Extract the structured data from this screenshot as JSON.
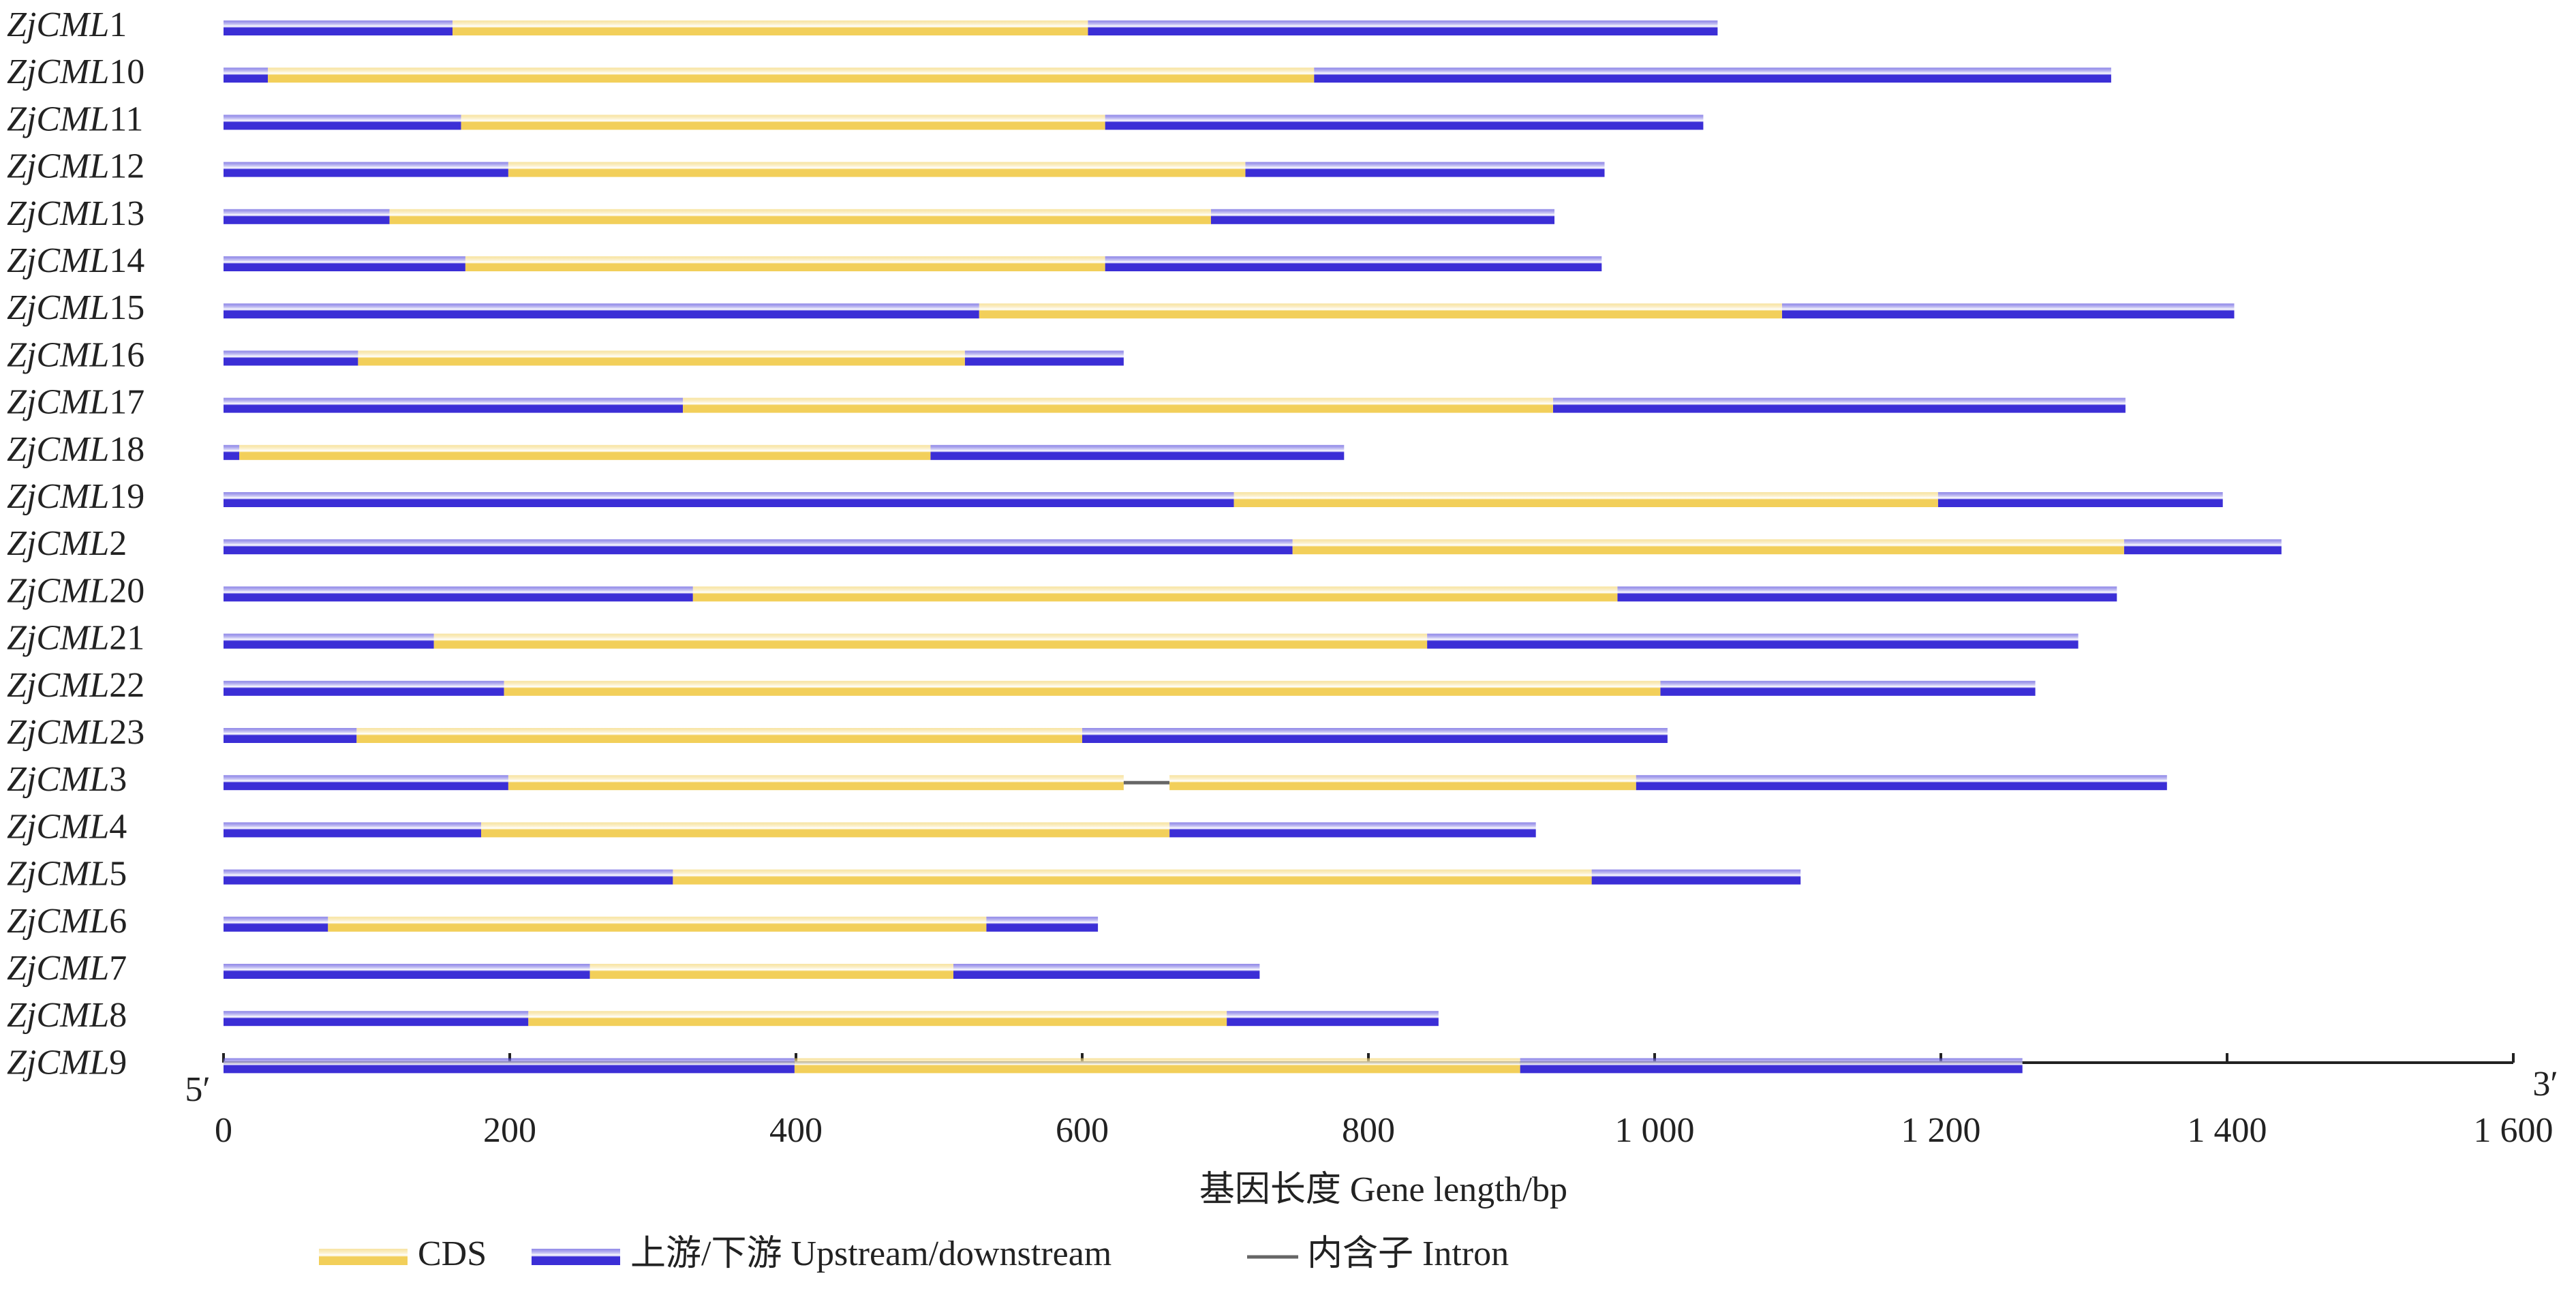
{
  "chart_data": {
    "type": "gene_structure",
    "xlabel": "基因长度 Gene length/bp",
    "start_label": "5′",
    "end_label": "3′",
    "xlim": [
      0,
      1600
    ],
    "xticks": [
      0,
      200,
      400,
      600,
      800,
      {
        "value": 1000,
        "label": "1 000"
      },
      {
        "value": 1200,
        "label": "1 200"
      },
      {
        "value": 1400,
        "label": "1 400"
      },
      {
        "value": 1600,
        "label": "1 600"
      }
    ],
    "series": [
      {
        "name": "CDS",
        "color": "#f2cf5a"
      },
      {
        "name": "上游/下游 Upstream/downstream",
        "color": "#3b2ed6"
      },
      {
        "name": "内含子 Intron",
        "color": "#666666"
      }
    ],
    "genes": [
      {
        "name": "ZjCML1",
        "cds": [
          [
            160,
            604
          ]
        ],
        "length": 1044
      },
      {
        "name": "ZjCML10",
        "cds": [
          [
            31,
            762
          ]
        ],
        "length": 1319
      },
      {
        "name": "ZjCML11",
        "cds": [
          [
            166,
            616
          ]
        ],
        "length": 1034
      },
      {
        "name": "ZjCML12",
        "cds": [
          [
            199,
            714
          ]
        ],
        "length": 965
      },
      {
        "name": "ZjCML13",
        "cds": [
          [
            116,
            690
          ]
        ],
        "length": 930
      },
      {
        "name": "ZjCML14",
        "cds": [
          [
            169,
            616
          ]
        ],
        "length": 963
      },
      {
        "name": "ZjCML15",
        "cds": [
          [
            528,
            1089
          ]
        ],
        "length": 1405
      },
      {
        "name": "ZjCML16",
        "cds": [
          [
            94,
            518
          ]
        ],
        "length": 629
      },
      {
        "name": "ZjCML17",
        "cds": [
          [
            321,
            929
          ]
        ],
        "length": 1329
      },
      {
        "name": "ZjCML18",
        "cds": [
          [
            11,
            494
          ]
        ],
        "length": 783
      },
      {
        "name": "ZjCML19",
        "cds": [
          [
            706,
            1198
          ]
        ],
        "length": 1397
      },
      {
        "name": "ZjCML2",
        "cds": [
          [
            747,
            1328
          ]
        ],
        "length": 1438
      },
      {
        "name": "ZjCML20",
        "cds": [
          [
            328,
            974
          ]
        ],
        "length": 1323
      },
      {
        "name": "ZjCML21",
        "cds": [
          [
            147,
            841
          ]
        ],
        "length": 1296
      },
      {
        "name": "ZjCML22",
        "cds": [
          [
            196,
            1004
          ]
        ],
        "length": 1266
      },
      {
        "name": "ZjCML23",
        "cds": [
          [
            93,
            600
          ]
        ],
        "length": 1009
      },
      {
        "name": "ZjCML3",
        "cds": [
          [
            199,
            629
          ],
          [
            661,
            987
          ]
        ],
        "length": 1358
      },
      {
        "name": "ZjCML4",
        "cds": [
          [
            180,
            661
          ]
        ],
        "length": 917
      },
      {
        "name": "ZjCML5",
        "cds": [
          [
            314,
            956
          ]
        ],
        "length": 1102
      },
      {
        "name": "ZjCML6",
        "cds": [
          [
            73,
            533
          ]
        ],
        "length": 611
      },
      {
        "name": "ZjCML7",
        "cds": [
          [
            256,
            510
          ]
        ],
        "length": 724
      },
      {
        "name": "ZjCML8",
        "cds": [
          [
            213,
            701
          ]
        ],
        "length": 849
      },
      {
        "name": "ZjCML9",
        "cds": [
          [
            399,
            906
          ]
        ],
        "length": 1257
      }
    ]
  }
}
